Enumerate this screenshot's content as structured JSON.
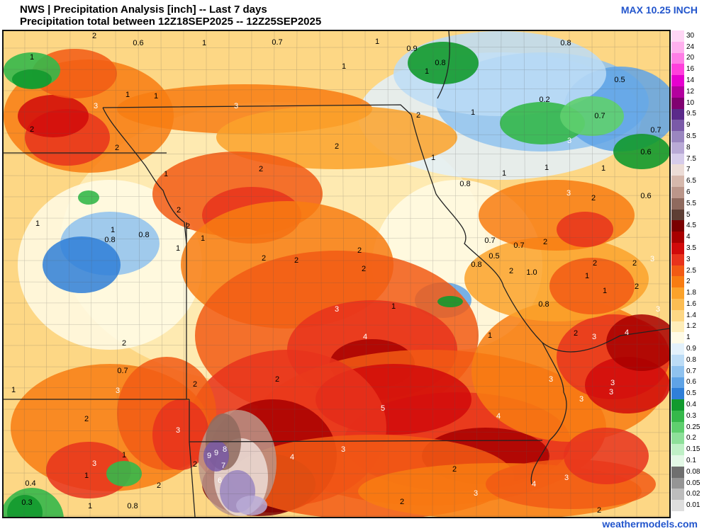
{
  "header": {
    "title": "NWS | Precipitation Analysis [inch] -- Last 7 days",
    "subtitle": "Precipitation total between 12Z18SEP2025 -- 12Z25SEP2025",
    "max_label": "MAX 10.25 INCH"
  },
  "credit": "weathermodels.com",
  "legend": [
    {
      "label": "30",
      "color": "#ffd6f5"
    },
    {
      "label": "24",
      "color": "#ffb0ee"
    },
    {
      "label": "20",
      "color": "#ff7ee6"
    },
    {
      "label": "16",
      "color": "#ff40dc"
    },
    {
      "label": "14",
      "color": "#e600cf"
    },
    {
      "label": "12",
      "color": "#b3009e"
    },
    {
      "label": "10",
      "color": "#800070"
    },
    {
      "label": "9.5",
      "color": "#5a2a8a"
    },
    {
      "label": "9",
      "color": "#7a5aa8"
    },
    {
      "label": "8.5",
      "color": "#9a86c0"
    },
    {
      "label": "8",
      "color": "#b9aad6"
    },
    {
      "label": "7.5",
      "color": "#d6ccea"
    },
    {
      "label": "7",
      "color": "#ecdcd6"
    },
    {
      "label": "6.5",
      "color": "#d6b8ac"
    },
    {
      "label": "6",
      "color": "#bb968a"
    },
    {
      "label": "5.5",
      "color": "#8f6a5e"
    },
    {
      "label": "5",
      "color": "#5e3e34"
    },
    {
      "label": "4.5",
      "color": "#7a0000"
    },
    {
      "label": "4",
      "color": "#a80000"
    },
    {
      "label": "3.5",
      "color": "#d10a0a"
    },
    {
      "label": "3",
      "color": "#e8331c"
    },
    {
      "label": "2.5",
      "color": "#f25a14"
    },
    {
      "label": "2",
      "color": "#f87c12"
    },
    {
      "label": "1.8",
      "color": "#fba22a"
    },
    {
      "label": "1.6",
      "color": "#fcbd53"
    },
    {
      "label": "1.4",
      "color": "#fdd785"
    },
    {
      "label": "1.2",
      "color": "#feedb8"
    },
    {
      "label": "1",
      "color": "#fffbe6"
    },
    {
      "label": "0.9",
      "color": "#e3f1fb"
    },
    {
      "label": "0.8",
      "color": "#bcdcf6"
    },
    {
      "label": "0.7",
      "color": "#8fc2ef"
    },
    {
      "label": "0.6",
      "color": "#5fa3e6"
    },
    {
      "label": "0.5",
      "color": "#2f7fd8"
    },
    {
      "label": "0.4",
      "color": "#129a2e"
    },
    {
      "label": "0.3",
      "color": "#35b84a"
    },
    {
      "label": "0.25",
      "color": "#5fcf6e"
    },
    {
      "label": "0.2",
      "color": "#8ee09a"
    },
    {
      "label": "0.15",
      "color": "#bff0c6"
    },
    {
      "label": "0.1",
      "color": "#e3f8e6"
    },
    {
      "label": "0.08",
      "color": "#6f6f6f"
    },
    {
      "label": "0.05",
      "color": "#959595"
    },
    {
      "label": "0.02",
      "color": "#bdbdbd"
    },
    {
      "label": "0.01",
      "color": "#dedede"
    }
  ],
  "map_labels": [
    {
      "text": "3"
    },
    {
      "text": "0.3"
    },
    {
      "text": "0.4"
    },
    {
      "text": "0.8"
    },
    {
      "text": "0.5"
    },
    {
      "text": "0.8"
    },
    {
      "text": "0.6"
    },
    {
      "text": "3"
    },
    {
      "text": "2"
    },
    {
      "text": "0.6"
    },
    {
      "text": "1"
    },
    {
      "text": "0.7"
    },
    {
      "text": "1"
    },
    {
      "text": "1"
    },
    {
      "text": "1"
    },
    {
      "text": "0.9"
    },
    {
      "text": "0.8"
    },
    {
      "text": "1"
    },
    {
      "text": "0.8"
    },
    {
      "text": "0.5"
    },
    {
      "text": "1"
    },
    {
      "text": "1"
    },
    {
      "text": "3"
    },
    {
      "text": "3"
    },
    {
      "text": "2"
    },
    {
      "text": "1"
    },
    {
      "text": "0.2"
    },
    {
      "text": "2"
    },
    {
      "text": "0.7"
    },
    {
      "text": "1"
    },
    {
      "text": "0.7"
    },
    {
      "text": "2"
    },
    {
      "text": "2"
    },
    {
      "text": "2"
    },
    {
      "text": "3"
    },
    {
      "text": "0.6"
    },
    {
      "text": "1"
    },
    {
      "text": "2"
    },
    {
      "text": "1"
    },
    {
      "text": "1"
    },
    {
      "text": "0.8"
    },
    {
      "text": "1"
    },
    {
      "text": "1"
    },
    {
      "text": "3"
    },
    {
      "text": "0.6"
    },
    {
      "text": "2"
    },
    {
      "text": "1"
    },
    {
      "text": "2"
    },
    {
      "text": "1"
    },
    {
      "text": "0.8"
    },
    {
      "text": "0.8"
    },
    {
      "text": "1"
    },
    {
      "text": "2"
    },
    {
      "text": "2"
    },
    {
      "text": "1"
    },
    {
      "text": "0.7"
    },
    {
      "text": "0.5"
    },
    {
      "text": "0.7"
    },
    {
      "text": "2"
    },
    {
      "text": "2"
    },
    {
      "text": "2"
    },
    {
      "text": "2"
    },
    {
      "text": "2"
    },
    {
      "text": "3"
    },
    {
      "text": "0.8"
    },
    {
      "text": "2"
    },
    {
      "text": "1.0"
    },
    {
      "text": "1"
    },
    {
      "text": "1"
    },
    {
      "text": "2"
    },
    {
      "text": "1"
    },
    {
      "text": "3"
    },
    {
      "text": "1"
    },
    {
      "text": "0.8"
    },
    {
      "text": "3"
    },
    {
      "text": "2"
    },
    {
      "text": "4"
    },
    {
      "text": "2"
    },
    {
      "text": "1"
    },
    {
      "text": "3"
    },
    {
      "text": "4"
    },
    {
      "text": "0.7"
    },
    {
      "text": "3"
    },
    {
      "text": "2"
    },
    {
      "text": "2"
    },
    {
      "text": "3"
    },
    {
      "text": "3"
    },
    {
      "text": "3"
    },
    {
      "text": "2"
    },
    {
      "text": "5"
    },
    {
      "text": "4"
    },
    {
      "text": "3"
    },
    {
      "text": "3"
    },
    {
      "text": "3"
    },
    {
      "text": "1"
    },
    {
      "text": "9"
    },
    {
      "text": "9"
    },
    {
      "text": "8"
    },
    {
      "text": "4"
    },
    {
      "text": "3"
    },
    {
      "text": "2"
    },
    {
      "text": "7"
    },
    {
      "text": "1"
    },
    {
      "text": "2"
    },
    {
      "text": "6"
    },
    {
      "text": "2"
    },
    {
      "text": "0.4"
    },
    {
      "text": "0.3"
    },
    {
      "text": "1"
    },
    {
      "text": "0.8"
    },
    {
      "text": "4"
    },
    {
      "text": "3"
    },
    {
      "text": "2"
    },
    {
      "text": "3"
    },
    {
      "text": "2"
    }
  ]
}
